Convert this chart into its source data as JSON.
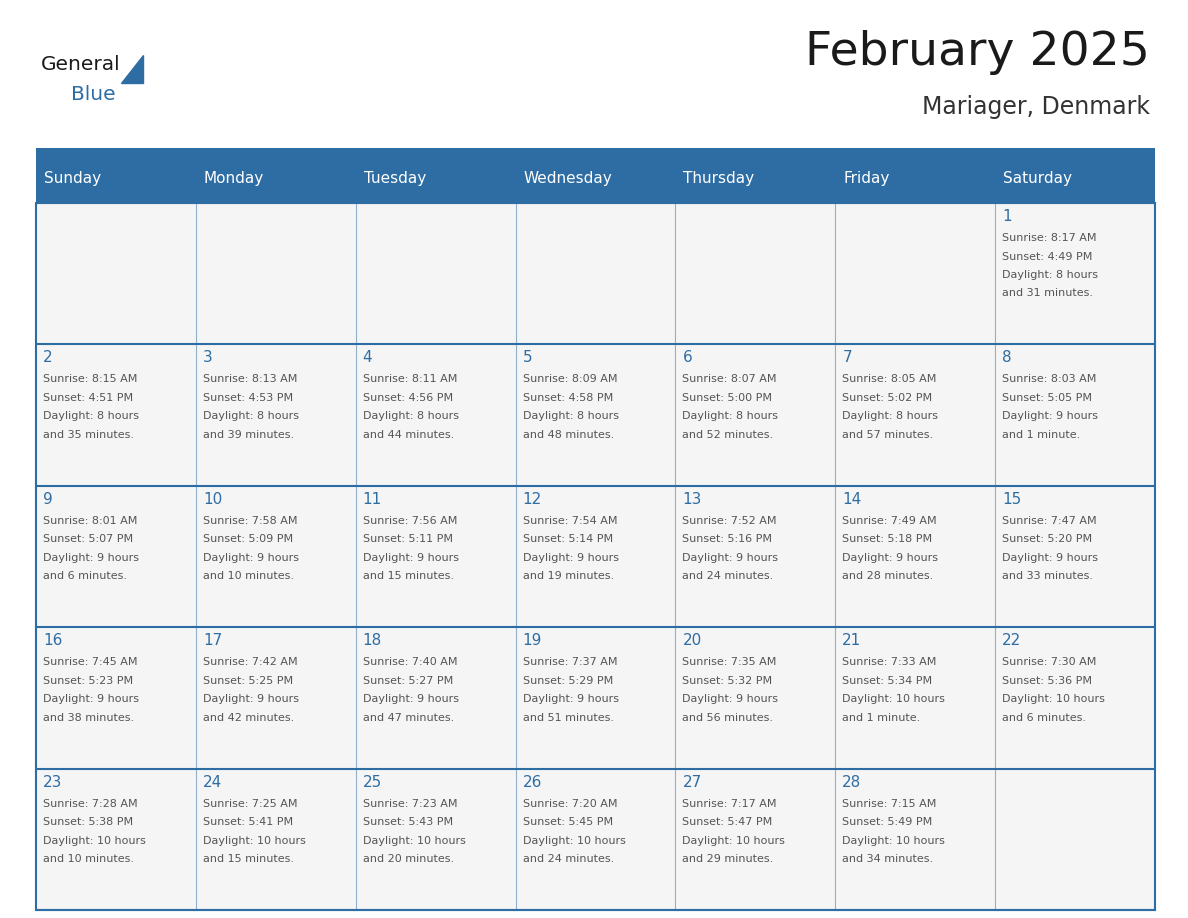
{
  "title": "February 2025",
  "subtitle": "Mariager, Denmark",
  "days_of_week": [
    "Sunday",
    "Monday",
    "Tuesday",
    "Wednesday",
    "Thursday",
    "Friday",
    "Saturday"
  ],
  "header_bg": "#2E6DA4",
  "header_text": "#FFFFFF",
  "cell_bg": "#F5F5F5",
  "border_color": "#2E6DA4",
  "day_number_color": "#2E6DA4",
  "info_text_color": "#555555",
  "title_color": "#1a1a1a",
  "subtitle_color": "#333333",
  "logo_general_color": "#1a1a1a",
  "logo_blue_color": "#2E6DA4",
  "weeks": [
    [
      {
        "day": null,
        "info": ""
      },
      {
        "day": null,
        "info": ""
      },
      {
        "day": null,
        "info": ""
      },
      {
        "day": null,
        "info": ""
      },
      {
        "day": null,
        "info": ""
      },
      {
        "day": null,
        "info": ""
      },
      {
        "day": 1,
        "info": "Sunrise: 8:17 AM\nSunset: 4:49 PM\nDaylight: 8 hours\nand 31 minutes."
      }
    ],
    [
      {
        "day": 2,
        "info": "Sunrise: 8:15 AM\nSunset: 4:51 PM\nDaylight: 8 hours\nand 35 minutes."
      },
      {
        "day": 3,
        "info": "Sunrise: 8:13 AM\nSunset: 4:53 PM\nDaylight: 8 hours\nand 39 minutes."
      },
      {
        "day": 4,
        "info": "Sunrise: 8:11 AM\nSunset: 4:56 PM\nDaylight: 8 hours\nand 44 minutes."
      },
      {
        "day": 5,
        "info": "Sunrise: 8:09 AM\nSunset: 4:58 PM\nDaylight: 8 hours\nand 48 minutes."
      },
      {
        "day": 6,
        "info": "Sunrise: 8:07 AM\nSunset: 5:00 PM\nDaylight: 8 hours\nand 52 minutes."
      },
      {
        "day": 7,
        "info": "Sunrise: 8:05 AM\nSunset: 5:02 PM\nDaylight: 8 hours\nand 57 minutes."
      },
      {
        "day": 8,
        "info": "Sunrise: 8:03 AM\nSunset: 5:05 PM\nDaylight: 9 hours\nand 1 minute."
      }
    ],
    [
      {
        "day": 9,
        "info": "Sunrise: 8:01 AM\nSunset: 5:07 PM\nDaylight: 9 hours\nand 6 minutes."
      },
      {
        "day": 10,
        "info": "Sunrise: 7:58 AM\nSunset: 5:09 PM\nDaylight: 9 hours\nand 10 minutes."
      },
      {
        "day": 11,
        "info": "Sunrise: 7:56 AM\nSunset: 5:11 PM\nDaylight: 9 hours\nand 15 minutes."
      },
      {
        "day": 12,
        "info": "Sunrise: 7:54 AM\nSunset: 5:14 PM\nDaylight: 9 hours\nand 19 minutes."
      },
      {
        "day": 13,
        "info": "Sunrise: 7:52 AM\nSunset: 5:16 PM\nDaylight: 9 hours\nand 24 minutes."
      },
      {
        "day": 14,
        "info": "Sunrise: 7:49 AM\nSunset: 5:18 PM\nDaylight: 9 hours\nand 28 minutes."
      },
      {
        "day": 15,
        "info": "Sunrise: 7:47 AM\nSunset: 5:20 PM\nDaylight: 9 hours\nand 33 minutes."
      }
    ],
    [
      {
        "day": 16,
        "info": "Sunrise: 7:45 AM\nSunset: 5:23 PM\nDaylight: 9 hours\nand 38 minutes."
      },
      {
        "day": 17,
        "info": "Sunrise: 7:42 AM\nSunset: 5:25 PM\nDaylight: 9 hours\nand 42 minutes."
      },
      {
        "day": 18,
        "info": "Sunrise: 7:40 AM\nSunset: 5:27 PM\nDaylight: 9 hours\nand 47 minutes."
      },
      {
        "day": 19,
        "info": "Sunrise: 7:37 AM\nSunset: 5:29 PM\nDaylight: 9 hours\nand 51 minutes."
      },
      {
        "day": 20,
        "info": "Sunrise: 7:35 AM\nSunset: 5:32 PM\nDaylight: 9 hours\nand 56 minutes."
      },
      {
        "day": 21,
        "info": "Sunrise: 7:33 AM\nSunset: 5:34 PM\nDaylight: 10 hours\nand 1 minute."
      },
      {
        "day": 22,
        "info": "Sunrise: 7:30 AM\nSunset: 5:36 PM\nDaylight: 10 hours\nand 6 minutes."
      }
    ],
    [
      {
        "day": 23,
        "info": "Sunrise: 7:28 AM\nSunset: 5:38 PM\nDaylight: 10 hours\nand 10 minutes."
      },
      {
        "day": 24,
        "info": "Sunrise: 7:25 AM\nSunset: 5:41 PM\nDaylight: 10 hours\nand 15 minutes."
      },
      {
        "day": 25,
        "info": "Sunrise: 7:23 AM\nSunset: 5:43 PM\nDaylight: 10 hours\nand 20 minutes."
      },
      {
        "day": 26,
        "info": "Sunrise: 7:20 AM\nSunset: 5:45 PM\nDaylight: 10 hours\nand 24 minutes."
      },
      {
        "day": 27,
        "info": "Sunrise: 7:17 AM\nSunset: 5:47 PM\nDaylight: 10 hours\nand 29 minutes."
      },
      {
        "day": 28,
        "info": "Sunrise: 7:15 AM\nSunset: 5:49 PM\nDaylight: 10 hours\nand 34 minutes."
      },
      {
        "day": null,
        "info": ""
      }
    ]
  ]
}
